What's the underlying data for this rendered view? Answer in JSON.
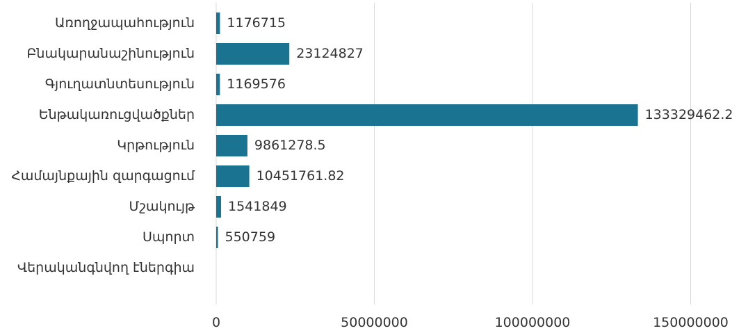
{
  "chart_data": {
    "type": "bar",
    "orientation": "horizontal",
    "categories": [
      "Առողջապահություն",
      "Բնակարանաշինություն",
      "Գյուղատնտեսություն",
      "Ենթակառուցվածքներ",
      "Կրթություն",
      "Համայնքային զարգացում",
      "Մշակույթ",
      "Սպորտ",
      "Վերականգնվող էներգիա"
    ],
    "values": [
      1176715,
      23124827,
      1169576,
      133329462.2,
      9861278.5,
      10451761.82,
      1541849,
      550759,
      0
    ],
    "value_labels": [
      "1176715",
      "23124827",
      "1169576",
      "133329462.2",
      "9861278.5",
      "10451761.82",
      "1541849",
      "550759",
      ""
    ],
    "xlim": [
      0,
      150000000
    ],
    "x_ticks": [
      0,
      50000000,
      100000000,
      150000000
    ],
    "x_tick_labels": [
      "0",
      "50000000",
      "100000000",
      "150000000"
    ],
    "grid": true,
    "bar_color": "#1a7391",
    "grid_color": "#d9d9d9"
  }
}
